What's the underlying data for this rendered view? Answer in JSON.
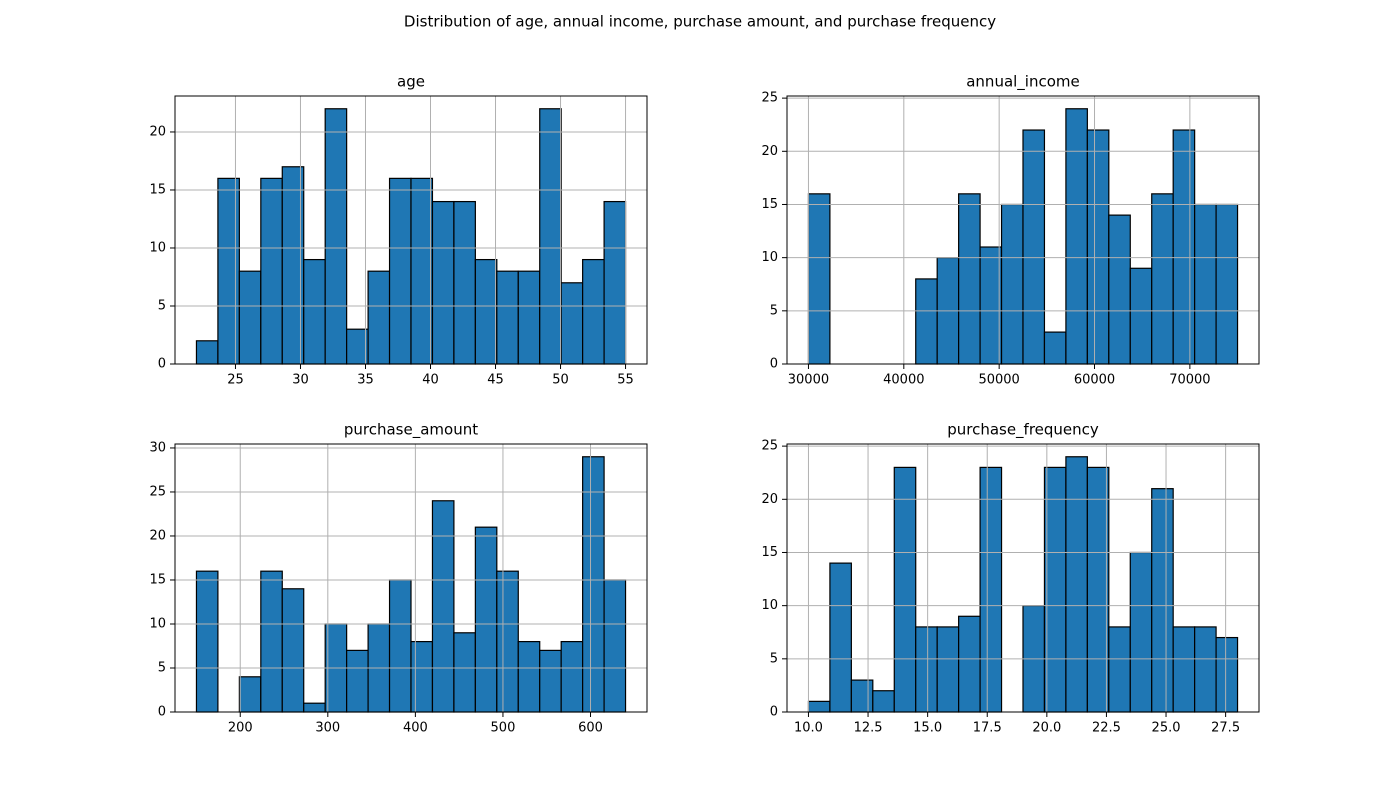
{
  "title": "Distribution of age, annual income, purchase amount, and purchase frequency",
  "chart_data": [
    {
      "type": "histogram",
      "title": "age",
      "color": "#1f77b4",
      "edgecolor": "#000000",
      "grid": true,
      "bins": [
        22,
        23.65,
        25.3,
        26.95,
        28.6,
        30.25,
        31.9,
        33.55,
        35.2,
        36.85,
        38.5,
        40.15,
        41.8,
        43.45,
        45.1,
        46.75,
        48.4,
        50.05,
        51.7,
        53.35,
        55
      ],
      "counts": [
        2,
        16,
        8,
        16,
        17,
        9,
        22,
        3,
        8,
        16,
        16,
        14,
        14,
        9,
        8,
        8,
        22,
        7,
        9,
        14
      ],
      "xlim": [
        20.35,
        56.65
      ],
      "xticks": [
        25,
        30,
        35,
        40,
        45,
        50,
        55
      ],
      "ylim": [
        0,
        23.1
      ],
      "yticks": [
        0,
        5,
        10,
        15,
        20
      ]
    },
    {
      "type": "histogram",
      "title": "annual_income",
      "color": "#1f77b4",
      "edgecolor": "#000000",
      "grid": true,
      "bins": [
        30000,
        32250,
        34500,
        36750,
        39000,
        41250,
        43500,
        45750,
        48000,
        50250,
        52500,
        54750,
        57000,
        59250,
        61500,
        63750,
        66000,
        68250,
        70500,
        72750,
        75000
      ],
      "counts": [
        16,
        0,
        0,
        0,
        0,
        8,
        10,
        16,
        11,
        15,
        22,
        3,
        24,
        22,
        14,
        9,
        16,
        22,
        15,
        15
      ],
      "xlim": [
        27750,
        77250
      ],
      "xticks": [
        30000,
        40000,
        50000,
        60000,
        70000
      ],
      "ylim": [
        0,
        25.2
      ],
      "yticks": [
        0,
        5,
        10,
        15,
        20,
        25
      ]
    },
    {
      "type": "histogram",
      "title": "purchase_amount",
      "color": "#1f77b4",
      "edgecolor": "#000000",
      "grid": true,
      "bins": [
        150,
        174.5,
        199,
        223.5,
        248,
        272.5,
        297,
        321.5,
        346,
        370.5,
        395,
        419.5,
        444,
        468.5,
        493,
        517.5,
        542,
        566.5,
        591,
        615.5,
        640
      ],
      "counts": [
        16,
        0,
        4,
        16,
        14,
        1,
        10,
        7,
        10,
        15,
        8,
        24,
        9,
        21,
        16,
        8,
        7,
        8,
        29,
        15
      ],
      "xlim": [
        125.5,
        664.5
      ],
      "xticks": [
        200,
        300,
        400,
        500,
        600
      ],
      "ylim": [
        0,
        30.45
      ],
      "yticks": [
        0,
        5,
        10,
        15,
        20,
        25,
        30
      ]
    },
    {
      "type": "histogram",
      "title": "purchase_frequency",
      "color": "#1f77b4",
      "edgecolor": "#000000",
      "grid": true,
      "bins": [
        10,
        10.9,
        11.8,
        12.7,
        13.6,
        14.5,
        15.4,
        16.3,
        17.2,
        18.1,
        19,
        19.9,
        20.8,
        21.7,
        22.6,
        23.5,
        24.4,
        25.3,
        26.2,
        27.1,
        28
      ],
      "counts": [
        1,
        14,
        3,
        2,
        23,
        8,
        8,
        9,
        23,
        0,
        10,
        23,
        24,
        23,
        8,
        15,
        21,
        8,
        8,
        7
      ],
      "xlim": [
        9.1,
        28.9
      ],
      "xticks": [
        {
          "value": 10,
          "label": "10.0"
        },
        12.5,
        {
          "value": 15,
          "label": "15.0"
        },
        17.5,
        {
          "value": 20,
          "label": "20.0"
        },
        22.5,
        {
          "value": 25,
          "label": "25.0"
        },
        27.5
      ],
      "ylim": [
        0,
        25.2
      ],
      "yticks": [
        0,
        5,
        10,
        15,
        20,
        25
      ]
    }
  ]
}
